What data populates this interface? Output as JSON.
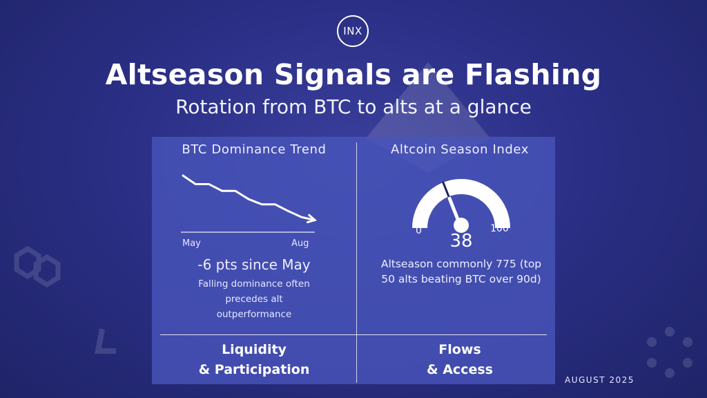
{
  "logo": {
    "text": "INX"
  },
  "title": "Altseason Signals are Flashing",
  "subtitle": "Rotation from BTC to alts at a glance",
  "date": "AUGUST 2025",
  "left_panel": {
    "title": "BTC Dominance Trend",
    "stat_main": "-6 pts since May",
    "stat_desc": "Falling dominance often precedes alt outperformance",
    "footer_line1": "Liquidity",
    "footer_line2": "& Participation"
  },
  "right_panel": {
    "title": "Altcoin Season Index",
    "description": "Altseason commonly 775 (top 50 alts beating BTC over 90d)",
    "footer_line1": "Flows",
    "footer_line2": "& Access"
  },
  "chart_data": [
    {
      "type": "line",
      "title": "BTC Dominance Trend",
      "x_labels": [
        "May",
        "Aug"
      ],
      "x": [
        0,
        1,
        2,
        3,
        4,
        5,
        6,
        7,
        8,
        9,
        10
      ],
      "values": [
        0,
        -1.2,
        -1.2,
        -2.1,
        -2.1,
        -3.2,
        -3.9,
        -3.9,
        -4.8,
        -5.6,
        -6.0
      ],
      "annotation": "-6 pts since May",
      "ylim": [
        -6.5,
        0.5
      ],
      "grid": false,
      "color": "#ffffff"
    },
    {
      "type": "gauge",
      "title": "Altcoin Season Index",
      "value": 38,
      "range": [
        0,
        100
      ],
      "min_label": "0",
      "max_label": "100",
      "value_label": "38",
      "color": "#ffffff"
    }
  ],
  "colors": {
    "background": "#2b2f86",
    "panel": "#4854ba",
    "text": "#ffffff"
  }
}
